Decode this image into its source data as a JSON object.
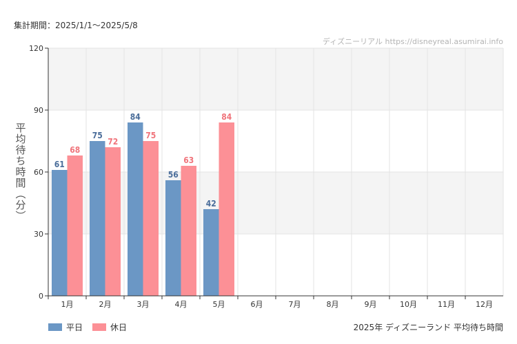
{
  "header": {
    "period": "集計期間：2025/1/1～2025/5/8",
    "source": "ディズニーリアル https://disneyreal.asumirai.info"
  },
  "footer": {
    "chart_name": "2025年 ディズニーランド 平均待ち時間"
  },
  "colors": {
    "weekday": "#6b97c5",
    "holiday": "#fc9096",
    "weekday_label": "#4a6d9a",
    "holiday_label": "#f0747b",
    "band": "#f4f4f4",
    "grid": "#e3e3e3",
    "axis": "#333333"
  },
  "chart_data": {
    "type": "bar",
    "title": "2025年 ディズニーランド 平均待ち時間",
    "ylabel": "平均待ち時間（分）",
    "xlabel": "",
    "ylim": [
      0,
      120
    ],
    "yticks": [
      0,
      30,
      60,
      90,
      120
    ],
    "categories": [
      "1月",
      "2月",
      "3月",
      "4月",
      "5月",
      "6月",
      "7月",
      "8月",
      "9月",
      "10月",
      "11月",
      "12月"
    ],
    "series": [
      {
        "name": "平日",
        "values": [
          61,
          75,
          84,
          56,
          42,
          null,
          null,
          null,
          null,
          null,
          null,
          null
        ]
      },
      {
        "name": "休日",
        "values": [
          68,
          72,
          75,
          63,
          84,
          null,
          null,
          null,
          null,
          null,
          null,
          null
        ]
      }
    ],
    "legend_position": "bottom-left"
  }
}
